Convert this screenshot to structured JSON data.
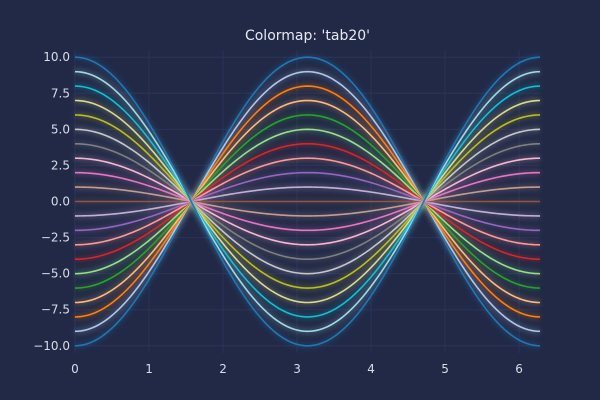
{
  "chart_data": {
    "type": "line",
    "title": "Colormap: 'tab20'",
    "xlabel": "",
    "ylabel": "",
    "xlim": [
      0,
      6.283
    ],
    "ylim": [
      -10.5,
      10.5
    ],
    "grid": true,
    "legend": "none",
    "function": "y = amplitude * cos(x)",
    "x_ticks": [
      0,
      1,
      2,
      3,
      4,
      5,
      6
    ],
    "x_tick_labels": [
      "0",
      "1",
      "2",
      "3",
      "4",
      "5",
      "6"
    ],
    "y_ticks": [
      10,
      7.5,
      5,
      2.5,
      0,
      -2.5,
      -5,
      -7.5,
      -10
    ],
    "y_tick_labels": [
      "10.0",
      "7.5",
      "5.0",
      "2.5",
      "0.0",
      "−2.5",
      "−5.0",
      "−7.5",
      "−10.0"
    ],
    "amplitudes": [
      -10,
      -9,
      -8,
      -7,
      -6,
      -5,
      -4,
      -3,
      -2,
      -1,
      0,
      1,
      2,
      3,
      4,
      5,
      6,
      7,
      8,
      9,
      10
    ],
    "series_colors": [
      "#1f77b4",
      "#aec7e8",
      "#ff7f0e",
      "#ffbb78",
      "#2ca02c",
      "#98df8a",
      "#d62728",
      "#ff9896",
      "#9467bd",
      "#c5b0d5",
      "#8c564b",
      "#c49c94",
      "#e377c2",
      "#f7b6d2",
      "#7f7f7f",
      "#c7c7c7",
      "#bcbd22",
      "#dbdb8d",
      "#17becf",
      "#9edae5",
      "#1f77b4"
    ],
    "colors": {
      "background": "#212946",
      "grid": "#2a3459",
      "text": "#d8dce8"
    }
  }
}
